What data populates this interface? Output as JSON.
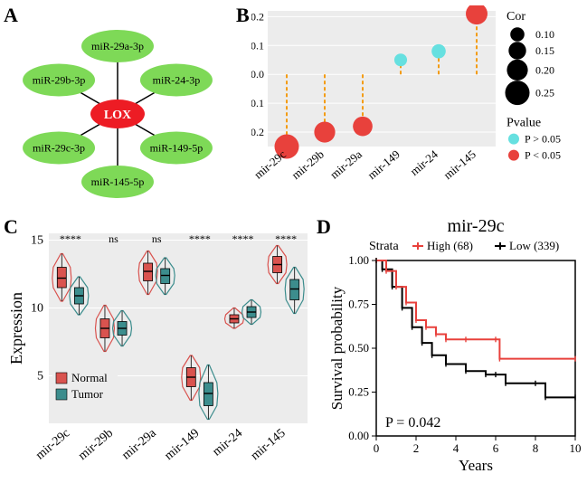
{
  "panelA": {
    "label": "A",
    "center_node": {
      "label": "LOX",
      "color": "#ed1c24",
      "text_color": "#ffffff"
    },
    "outer_nodes": [
      {
        "label": "miR-29a-3p",
        "angle": -90
      },
      {
        "label": "miR-24-3p",
        "angle": -30
      },
      {
        "label": "miR-149-5p",
        "angle": 30
      },
      {
        "label": "miR-145-5p",
        "angle": 90
      },
      {
        "label": "miR-29c-3p",
        "angle": 150
      },
      {
        "label": "miR-29b-3p",
        "angle": 210
      }
    ],
    "outer_color": "#7ed957"
  },
  "panelB": {
    "label": "B",
    "x_categories": [
      "mir-29c",
      "mir-29b",
      "mir-29a",
      "mir-149",
      "mir-24",
      "mir-145"
    ],
    "points": [
      {
        "x": 0,
        "y": -0.25,
        "cor": 0.25,
        "sig": true
      },
      {
        "x": 1,
        "y": -0.2,
        "cor": 0.2,
        "sig": true
      },
      {
        "x": 2,
        "y": -0.18,
        "cor": 0.18,
        "sig": true
      },
      {
        "x": 3,
        "y": 0.05,
        "cor": 0.08,
        "sig": false
      },
      {
        "x": 4,
        "y": 0.08,
        "cor": 0.1,
        "sig": false
      },
      {
        "x": 5,
        "y": 0.21,
        "cor": 0.21,
        "sig": true
      }
    ],
    "ylim": [
      -0.25,
      0.22
    ],
    "yticks": [
      -0.2,
      -0.1,
      0.0,
      0.1,
      0.2
    ],
    "legend_cor": {
      "title": "Cor",
      "items": [
        0.1,
        0.15,
        0.2,
        0.25
      ]
    },
    "legend_pval": {
      "title": "Pvalue",
      "items": [
        {
          "label": "P > 0.05",
          "color": "#66e0e0"
        },
        {
          "label": "P < 0.05",
          "color": "#e8413c"
        }
      ]
    },
    "stem_color": "#f39c12",
    "bg": "#ececec"
  },
  "panelC": {
    "label": "C",
    "x_categories": [
      "mir-29c",
      "mir-29b",
      "mir-29a",
      "mir-149",
      "mir-24",
      "mir-145"
    ],
    "sig_labels": [
      "****",
      "ns",
      "ns",
      "****",
      "****",
      "****"
    ],
    "groups": [
      {
        "name": "Normal",
        "color": "#d9534f"
      },
      {
        "name": "Tumor",
        "color": "#3c8d8d"
      }
    ],
    "data": [
      {
        "normal": {
          "q1": 11.5,
          "med": 12.2,
          "q3": 13.0,
          "w1": 10.5,
          "w2": 14.0
        },
        "tumor": {
          "q1": 10.3,
          "med": 10.9,
          "q3": 11.5,
          "w1": 9.5,
          "w2": 12.3
        }
      },
      {
        "normal": {
          "q1": 7.8,
          "med": 8.5,
          "q3": 9.2,
          "w1": 6.8,
          "w2": 10.2
        },
        "tumor": {
          "q1": 8.0,
          "med": 8.5,
          "q3": 9.0,
          "w1": 7.2,
          "w2": 9.8
        }
      },
      {
        "normal": {
          "q1": 12.0,
          "med": 12.7,
          "q3": 13.3,
          "w1": 11.0,
          "w2": 14.2
        },
        "tumor": {
          "q1": 11.8,
          "med": 12.4,
          "q3": 12.9,
          "w1": 11.0,
          "w2": 13.7
        }
      },
      {
        "normal": {
          "q1": 4.2,
          "med": 4.9,
          "q3": 5.6,
          "w1": 3.2,
          "w2": 6.5
        },
        "tumor": {
          "q1": 2.8,
          "med": 3.7,
          "q3": 4.5,
          "w1": 1.8,
          "w2": 5.8
        }
      },
      {
        "normal": {
          "q1": 8.9,
          "med": 9.2,
          "q3": 9.5,
          "w1": 8.5,
          "w2": 10.0
        },
        "tumor": {
          "q1": 9.3,
          "med": 9.7,
          "q3": 10.1,
          "w1": 8.8,
          "w2": 10.6
        }
      },
      {
        "normal": {
          "q1": 12.6,
          "med": 13.2,
          "q3": 13.8,
          "w1": 11.8,
          "w2": 14.6
        },
        "tumor": {
          "q1": 10.6,
          "med": 11.4,
          "q3": 12.1,
          "w1": 9.6,
          "w2": 13.0
        }
      }
    ],
    "ylim": [
      1.5,
      15.5
    ],
    "yticks": [
      5,
      10,
      15
    ],
    "ylabel": "Expression",
    "bg": "#ececec"
  },
  "panelD": {
    "label": "D",
    "title": "mir-29c",
    "strata_label": "Strata",
    "groups": [
      {
        "label": "High (68)",
        "color": "#e8413c"
      },
      {
        "label": "Low (339)",
        "color": "#000000"
      }
    ],
    "xlim": [
      0,
      10
    ],
    "ylim": [
      0,
      1
    ],
    "xticks": [
      0,
      2,
      4,
      6,
      8,
      10
    ],
    "yticks": [
      0.0,
      0.25,
      0.5,
      0.75,
      1.0
    ],
    "xlabel": "Years",
    "ylabel": "Survival probability",
    "pvalue": "P = 0.042",
    "curve_high": [
      [
        0,
        1.0
      ],
      [
        0.5,
        0.94
      ],
      [
        1.0,
        0.85
      ],
      [
        1.5,
        0.76
      ],
      [
        2.0,
        0.66
      ],
      [
        2.5,
        0.62
      ],
      [
        3.0,
        0.58
      ],
      [
        3.5,
        0.55
      ],
      [
        4.5,
        0.55
      ],
      [
        6.0,
        0.55
      ],
      [
        6.2,
        0.44
      ],
      [
        10.0,
        0.44
      ]
    ],
    "curve_low": [
      [
        0,
        1.0
      ],
      [
        0.3,
        0.95
      ],
      [
        0.8,
        0.85
      ],
      [
        1.3,
        0.73
      ],
      [
        1.8,
        0.62
      ],
      [
        2.3,
        0.53
      ],
      [
        2.8,
        0.46
      ],
      [
        3.5,
        0.41
      ],
      [
        4.5,
        0.37
      ],
      [
        5.5,
        0.35
      ],
      [
        6.0,
        0.35
      ],
      [
        6.5,
        0.3
      ],
      [
        8.0,
        0.3
      ],
      [
        8.5,
        0.22
      ],
      [
        10.0,
        0.22
      ]
    ]
  }
}
